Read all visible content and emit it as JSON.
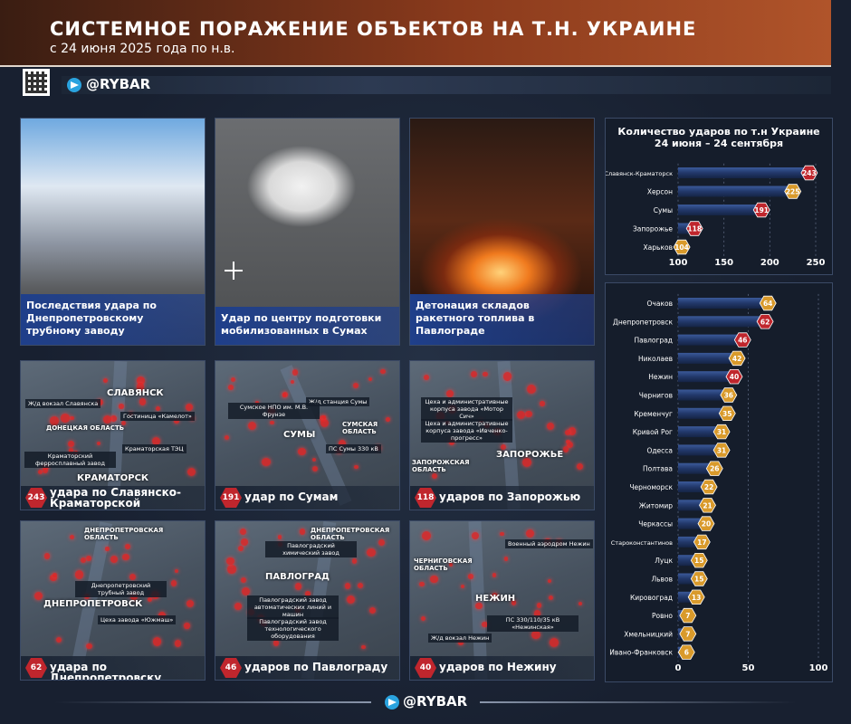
{
  "header": {
    "title": "СИСТЕМНОЕ ПОРАЖЕНИЕ ОБЪЕКТОВ НА Т.Н. УКРАИНЕ",
    "subtitle": "с 24 июня 2025 года по н.в.",
    "brand": "@RYBAR"
  },
  "photos": [
    {
      "caption": "Последствия удара по Днепропетровскому трубному заводу"
    },
    {
      "caption": "Удар по центру подготовки мобилизованных в Сумах"
    },
    {
      "caption": "Детонация складов ракетного топлива в Павлограде"
    }
  ],
  "maps": [
    {
      "count": 243,
      "caption": "удара по Славянско-Краматорской агломерации",
      "labels": [
        "СЛАВЯНСК",
        "Ж/д вокзал Славянска",
        "Гостиница «Камелот»",
        "ДОНЕЦКАЯ ОБЛАСТЬ",
        "Краматорская ТЭЦ",
        "Краматорский ферросплавный завод",
        "КРАМАТОРСК"
      ]
    },
    {
      "count": 191,
      "caption": "удар по Сумам",
      "labels": [
        "Ж/д станция Сумы",
        "Сумское НПО им. М.В. Фрунзе",
        "СУМЫ",
        "СУМСКАЯ ОБЛАСТЬ",
        "ПС Сумы 330 кВ"
      ]
    },
    {
      "count": 118,
      "caption": "ударов по Запорожью",
      "labels": [
        "Цеха и административные корпуса завода «Мотор Сич»",
        "Цеха и административные корпуса завода «Ивченко-прогресс»",
        "ЗАПОРОЖЬЕ",
        "ЗАПОРОЖСКАЯ ОБЛАСТЬ"
      ]
    },
    {
      "count": 62,
      "caption": "удара по Днепропетровску",
      "labels": [
        "ДНЕПРОПЕТРОВСКАЯ ОБЛАСТЬ",
        "Днепропетровский трубный завод",
        "ДНЕПРОПЕТРОВСК",
        "Цеха завода «Южмаш»"
      ]
    },
    {
      "count": 46,
      "caption": "ударов по Павлограду",
      "labels": [
        "ДНЕПРОПЕТРОВСКАЯ ОБЛАСТЬ",
        "Павлоградский химический завод",
        "ПАВЛОГРАД",
        "Павлоградский завод автоматических линий и машин",
        "Павлоградский завод технологического оборудования"
      ]
    },
    {
      "count": 40,
      "caption": "ударов по Нежину",
      "labels": [
        "Военный аэродром Нежин",
        "ЧЕРНИГОВСКАЯ ОБЛАСТЬ",
        "НЕЖИН",
        "ПС 330/110/35 кВ «Нежинская»",
        "Ж/д вокзал Нежин"
      ]
    }
  ],
  "chart_data": [
    {
      "type": "bar",
      "orientation": "horizontal",
      "title": "Количество ударов по т.н Украине\n24 июня – 24 сентября",
      "categories": [
        "Славянск-Краматорск",
        "Херсон",
        "Сумы",
        "Запорожье",
        "Харьков"
      ],
      "values": [
        243,
        225,
        191,
        118,
        104
      ],
      "marker_colors": [
        "#c0262d",
        "#d99a2b",
        "#c0262d",
        "#c0262d",
        "#d99a2b"
      ],
      "xlim": [
        100,
        250
      ],
      "xticks": [
        100,
        150,
        200,
        250
      ],
      "grid": true
    },
    {
      "type": "bar",
      "orientation": "horizontal",
      "categories": [
        "Очаков",
        "Днепропетровск",
        "Павлоград",
        "Николаев",
        "Нежин",
        "Чернигов",
        "Кременчуг",
        "Кривой Рог",
        "Одесса",
        "Полтава",
        "Черноморск",
        "Житомир",
        "Черкассы",
        "Староконстантинов",
        "Луцк",
        "Львов",
        "Кировоград",
        "Ровно",
        "Хмельницкий",
        "Ивано-Франковск"
      ],
      "values": [
        64,
        62,
        46,
        42,
        40,
        36,
        35,
        31,
        31,
        26,
        22,
        21,
        20,
        17,
        15,
        15,
        13,
        7,
        7,
        6
      ],
      "marker_colors": [
        "#d99a2b",
        "#c0262d",
        "#c0262d",
        "#d99a2b",
        "#c0262d",
        "#d99a2b",
        "#d99a2b",
        "#d99a2b",
        "#d99a2b",
        "#d99a2b",
        "#d99a2b",
        "#d99a2b",
        "#d99a2b",
        "#d99a2b",
        "#d99a2b",
        "#d99a2b",
        "#d99a2b",
        "#d99a2b",
        "#d99a2b",
        "#d99a2b"
      ],
      "xlim": [
        0,
        100
      ],
      "xticks": [
        0,
        50,
        100
      ],
      "grid": true
    }
  ],
  "footer": {
    "brand": "@RYBAR"
  }
}
